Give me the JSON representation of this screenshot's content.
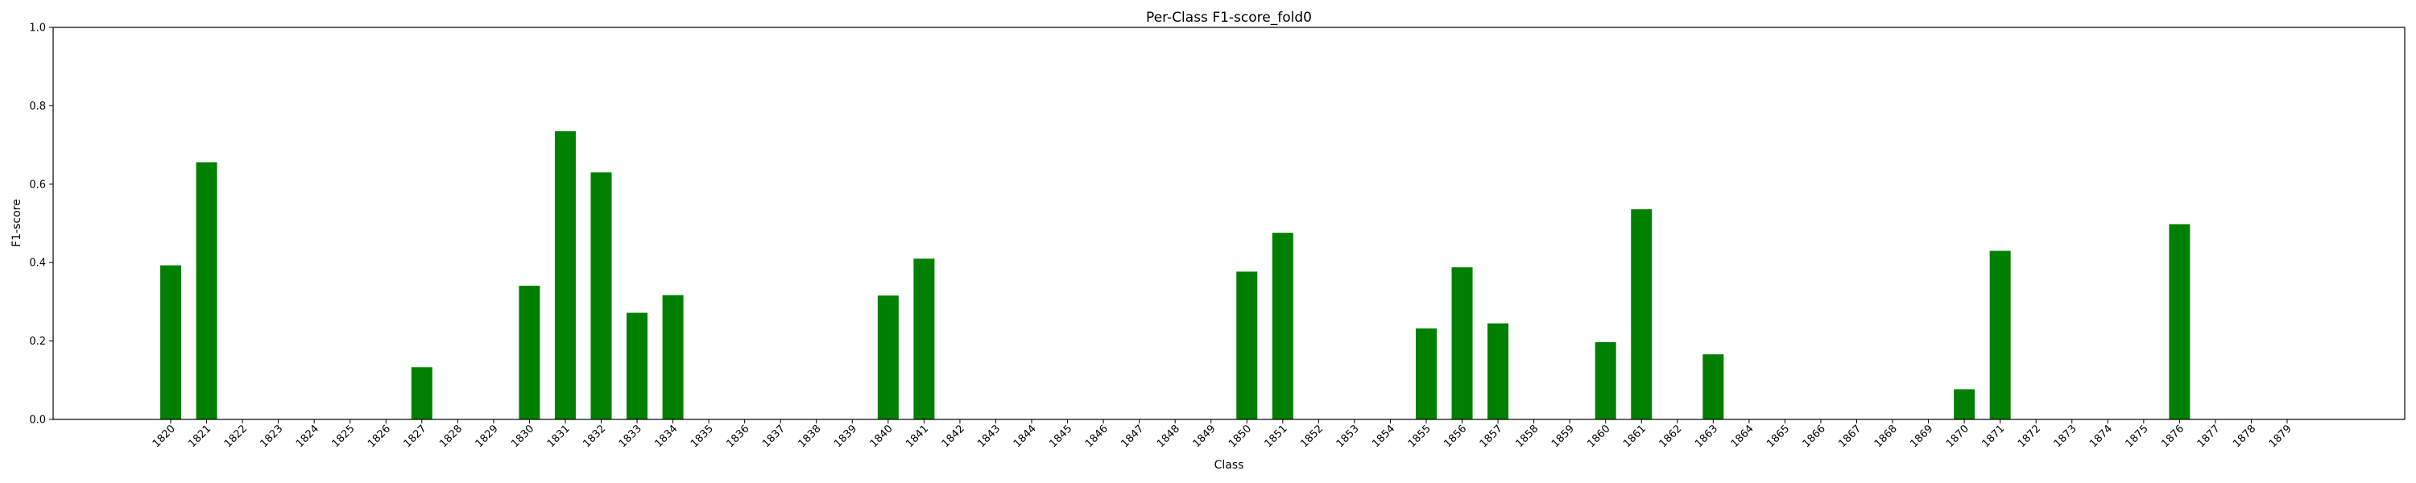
{
  "chart_data": {
    "type": "bar",
    "title": "Per-Class F1-score_fold0",
    "xlabel": "Class",
    "ylabel": "F1-score",
    "ylim": [
      0,
      1.0
    ],
    "yticks": [
      "0.0",
      "0.2",
      "0.4",
      "0.6",
      "0.8",
      "1.0"
    ],
    "grid": false,
    "bar_color": "#008000",
    "categories": [
      "1820",
      "1821",
      "1822",
      "1823",
      "1824",
      "1825",
      "1826",
      "1827",
      "1828",
      "1829",
      "1830",
      "1831",
      "1832",
      "1833",
      "1834",
      "1835",
      "1836",
      "1837",
      "1838",
      "1839",
      "1840",
      "1841",
      "1842",
      "1843",
      "1844",
      "1845",
      "1846",
      "1847",
      "1848",
      "1849",
      "1850",
      "1851",
      "1852",
      "1853",
      "1854",
      "1855",
      "1856",
      "1857",
      "1858",
      "1859",
      "1860",
      "1861",
      "1862",
      "1863",
      "1864",
      "1865",
      "1866",
      "1867",
      "1868",
      "1869",
      "1870",
      "1871",
      "1872",
      "1873",
      "1874",
      "1875",
      "1876",
      "1877",
      "1878",
      "1879"
    ],
    "values": [
      0.393,
      0.656,
      0,
      0,
      0,
      0,
      0,
      0.133,
      0,
      0,
      0.341,
      0.735,
      0.63,
      0.272,
      0.317,
      0,
      0,
      0,
      0,
      0,
      0.316,
      0.41,
      0,
      0,
      0,
      0,
      0,
      0,
      0,
      0,
      0.377,
      0.476,
      0,
      0,
      0,
      0.232,
      0.388,
      0.245,
      0,
      0,
      0.197,
      0.536,
      0,
      0.166,
      0,
      0,
      0,
      0,
      0,
      0,
      0.077,
      0.43,
      0,
      0,
      0,
      0,
      0.498,
      0,
      0,
      0
    ]
  }
}
